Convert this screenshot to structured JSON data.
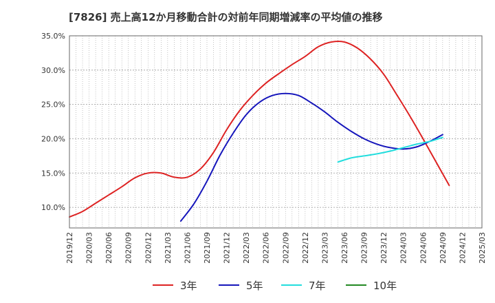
{
  "chart_data": {
    "type": "line",
    "title": "[7826]  売上高12か月移動合計の対前年同期増減率の平均値の推移",
    "xlabel": "",
    "ylabel": "",
    "ylim": [
      7.0,
      35.0
    ],
    "yticks": [
      10.0,
      15.0,
      20.0,
      25.0,
      30.0,
      35.0
    ],
    "ytick_labels": [
      "10.0%",
      "15.0%",
      "20.0%",
      "25.0%",
      "30.0%",
      "35.0%"
    ],
    "xlim": [
      "2019-12",
      "2025-03"
    ],
    "xtick_labels": [
      "2019/12",
      "2020/03",
      "2020/06",
      "2020/09",
      "2020/12",
      "2021/03",
      "2021/06",
      "2021/09",
      "2021/12",
      "2022/03",
      "2022/06",
      "2022/09",
      "2022/12",
      "2023/03",
      "2023/06",
      "2023/09",
      "2023/12",
      "2024/03",
      "2024/06",
      "2024/09",
      "2024/12",
      "2025/03"
    ],
    "grid": true,
    "legend_position": "bottom",
    "series": [
      {
        "name": "3年",
        "color": "#dd2222",
        "points": [
          [
            "2019-12",
            8.6
          ],
          [
            "2020-02",
            9.4
          ],
          [
            "2020-04",
            10.6
          ],
          [
            "2020-06",
            11.8
          ],
          [
            "2020-08",
            13.0
          ],
          [
            "2020-10",
            14.3
          ],
          [
            "2020-12",
            15.0
          ],
          [
            "2021-02",
            15.0
          ],
          [
            "2021-04",
            14.4
          ],
          [
            "2021-06",
            14.4
          ],
          [
            "2021-08",
            15.6
          ],
          [
            "2021-10",
            18.0
          ],
          [
            "2021-12",
            21.3
          ],
          [
            "2022-02",
            24.1
          ],
          [
            "2022-04",
            26.3
          ],
          [
            "2022-06",
            28.1
          ],
          [
            "2022-08",
            29.5
          ],
          [
            "2022-10",
            30.8
          ],
          [
            "2022-12",
            32.0
          ],
          [
            "2023-02",
            33.4
          ],
          [
            "2023-04",
            34.1
          ],
          [
            "2023-06",
            34.1
          ],
          [
            "2023-08",
            33.2
          ],
          [
            "2023-10",
            31.6
          ],
          [
            "2023-12",
            29.4
          ],
          [
            "2024-02",
            26.4
          ],
          [
            "2024-04",
            23.3
          ],
          [
            "2024-06",
            20.0
          ],
          [
            "2024-08",
            16.6
          ],
          [
            "2024-10",
            13.2
          ]
        ]
      },
      {
        "name": "5年",
        "color": "#1515bb",
        "points": [
          [
            "2021-05",
            8.0
          ],
          [
            "2021-07",
            10.5
          ],
          [
            "2021-09",
            13.8
          ],
          [
            "2021-11",
            17.6
          ],
          [
            "2022-01",
            20.8
          ],
          [
            "2022-03",
            23.5
          ],
          [
            "2022-05",
            25.3
          ],
          [
            "2022-07",
            26.3
          ],
          [
            "2022-09",
            26.6
          ],
          [
            "2022-11",
            26.3
          ],
          [
            "2023-01",
            25.2
          ],
          [
            "2023-03",
            23.9
          ],
          [
            "2023-05",
            22.4
          ],
          [
            "2023-07",
            21.1
          ],
          [
            "2023-09",
            20.0
          ],
          [
            "2023-11",
            19.2
          ],
          [
            "2024-01",
            18.7
          ],
          [
            "2024-03",
            18.5
          ],
          [
            "2024-05",
            18.8
          ],
          [
            "2024-07",
            19.6
          ],
          [
            "2024-09",
            20.6
          ]
        ]
      },
      {
        "name": "7年",
        "color": "#22dddd",
        "points": [
          [
            "2023-05",
            16.6
          ],
          [
            "2023-07",
            17.2
          ],
          [
            "2023-09",
            17.5
          ],
          [
            "2023-11",
            17.8
          ],
          [
            "2024-01",
            18.2
          ],
          [
            "2024-03",
            18.7
          ],
          [
            "2024-05",
            19.2
          ],
          [
            "2024-07",
            19.6
          ],
          [
            "2024-09",
            20.2
          ]
        ]
      },
      {
        "name": "10年",
        "color": "#228822",
        "points": []
      }
    ]
  }
}
